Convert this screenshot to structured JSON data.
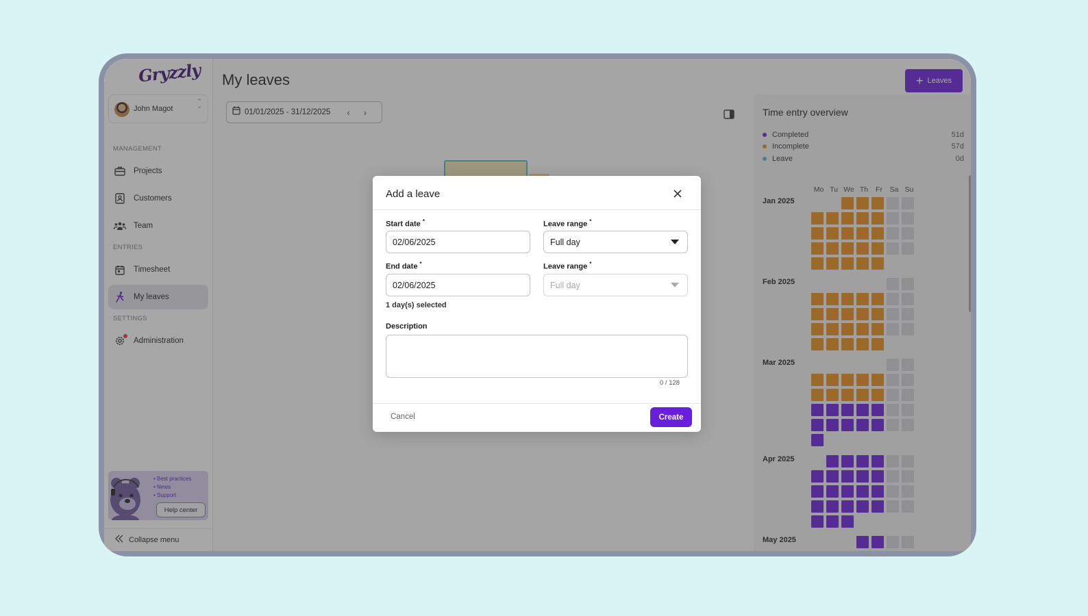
{
  "brand": {
    "logo_text": "Gryzzly"
  },
  "user": {
    "name": "John Magot"
  },
  "sidebar": {
    "sections": [
      {
        "label": "MANAGEMENT"
      },
      {
        "label": "ENTRIES"
      },
      {
        "label": "SETTINGS"
      }
    ],
    "items": [
      {
        "label": "Projects",
        "icon": "briefcase-icon"
      },
      {
        "label": "Customers",
        "icon": "address-book-icon"
      },
      {
        "label": "Team",
        "icon": "team-icon"
      },
      {
        "label": "Timesheet",
        "icon": "calendar-icon"
      },
      {
        "label": "My leaves",
        "icon": "walking-person-icon",
        "active": true
      },
      {
        "label": "Administration",
        "icon": "gear-icon"
      }
    ],
    "help": {
      "links": [
        "• Best practices",
        "• News",
        "• Support"
      ],
      "button": "Help center"
    },
    "collapse_label": "Collapse menu"
  },
  "main": {
    "title": "My leaves",
    "leaves_button": "Leaves",
    "date_range": "01/01/2025 - 31/12/2025"
  },
  "overview": {
    "title": "Time entry overview",
    "legend": [
      {
        "label": "Completed",
        "value": "51d",
        "color": "#6a1fdc"
      },
      {
        "label": "Incomplete",
        "value": "57d",
        "color": "#e9901e"
      },
      {
        "label": "Leave",
        "value": "0d",
        "color": "#5ab8c8"
      }
    ],
    "day_headers": [
      "Mo",
      "Tu",
      "We",
      "Th",
      "Fr",
      "Sa",
      "Su"
    ],
    "months": [
      "Jan 2025",
      "Feb 2025",
      "Mar 2025",
      "Apr 2025",
      "May 2025"
    ]
  },
  "modal": {
    "title": "Add a leave",
    "start_date_label": "Start date",
    "start_date_value": "02/06/2025",
    "end_date_label": "End date",
    "end_date_value": "02/06/2025",
    "leave_range_label": "Leave range",
    "leave_range_1": "Full day",
    "leave_range_2": "Full day",
    "required_mark": "*",
    "days_selected": "1 day(s) selected",
    "description_label": "Description",
    "counter": "0 / 128",
    "cancel": "Cancel",
    "create": "Create"
  }
}
